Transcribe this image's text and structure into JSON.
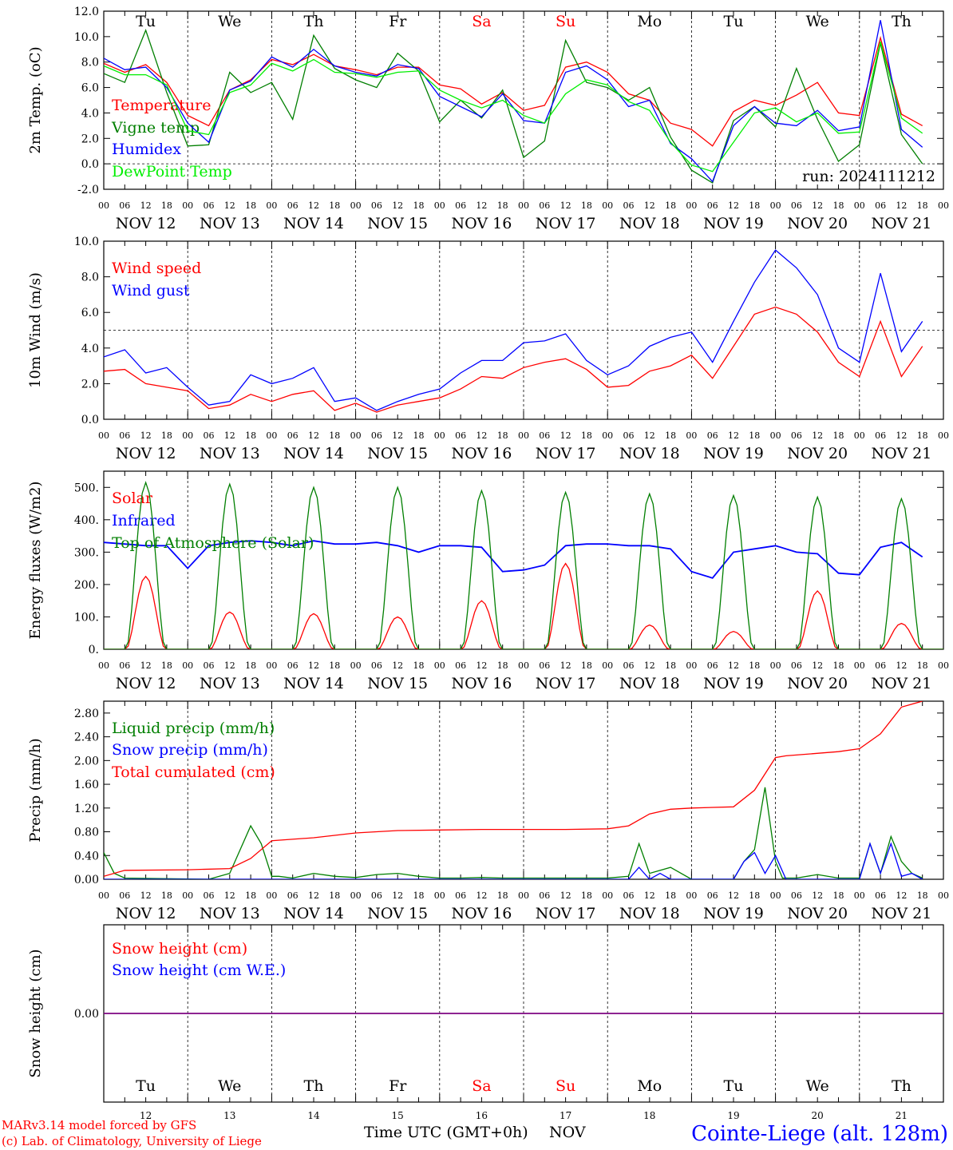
{
  "colors": {
    "red": "#ff0000",
    "green": "#007f00",
    "blue": "#0000ff",
    "lightgreen": "#00ee00",
    "purple": "#7f007f",
    "axis": "#000000"
  },
  "days": [
    "Tu",
    "We",
    "Th",
    "Fr",
    "Sa",
    "Su",
    "Mo",
    "Tu",
    "We",
    "Th"
  ],
  "weekend_days": [
    4,
    5
  ],
  "dates": [
    "NOV 12",
    "NOV 13",
    "NOV 14",
    "NOV 15",
    "NOV 16",
    "NOV 17",
    "NOV 18",
    "NOV 19",
    "NOV 20",
    "NOV 21"
  ],
  "day_numbers": [
    "12",
    "13",
    "14",
    "15",
    "16",
    "17",
    "18",
    "19",
    "20",
    "21"
  ],
  "hour_labels": [
    "00",
    "06",
    "12",
    "18"
  ],
  "footer": {
    "credit_line1": "MARv3.14 model forced by GFS",
    "credit_line2": "(c) Lab. of Climatology, University of Liege",
    "time_label": "Time UTC (GMT+0h)",
    "month_label": "NOV",
    "location": "Cointe-Liege (alt. 128m)"
  },
  "chart_data": [
    {
      "type": "line",
      "ylabel": "2m Temp. (oC)",
      "ylim": [
        -2,
        12
      ],
      "yticks": [
        "-2.0",
        "0.0",
        "2.0",
        "4.0",
        "6.0",
        "8.0",
        "10.0",
        "12.0"
      ],
      "ytick_values": [
        -2,
        0,
        2,
        4,
        6,
        8,
        10,
        12
      ],
      "ref_line": 0,
      "annotation": "run: 2024111212",
      "x_unit": "hours since NOV 12 00 UTC",
      "series": [
        {
          "name": "Temperature",
          "color": "#ff0000",
          "x": [
            0,
            6,
            12,
            18,
            24,
            30,
            36,
            42,
            48,
            54,
            60,
            66,
            72,
            78,
            84,
            90,
            96,
            102,
            108,
            114,
            120,
            126,
            132,
            138,
            144,
            150,
            156,
            162,
            168,
            174,
            180,
            186,
            192,
            198,
            204,
            210,
            216,
            222,
            228,
            234
          ],
          "values": [
            7.9,
            7.2,
            7.8,
            6.4,
            3.8,
            3.0,
            5.8,
            6.6,
            8.2,
            7.8,
            8.6,
            7.7,
            7.4,
            7.0,
            7.6,
            7.6,
            6.2,
            5.9,
            4.7,
            5.6,
            4.2,
            4.6,
            7.6,
            8.0,
            7.2,
            5.5,
            5.0,
            3.2,
            2.7,
            1.4,
            4.1,
            5.0,
            4.6,
            5.4,
            6.4,
            4.0,
            3.8,
            9.9,
            3.9,
            3.0
          ]
        },
        {
          "name": "Vigne temp",
          "color": "#007f00",
          "x": [
            0,
            6,
            12,
            18,
            24,
            30,
            36,
            42,
            48,
            54,
            60,
            66,
            72,
            78,
            84,
            90,
            96,
            102,
            108,
            114,
            120,
            126,
            132,
            138,
            144,
            150,
            156,
            162,
            168,
            174,
            180,
            186,
            192,
            198,
            204,
            210,
            216,
            222,
            228,
            234
          ],
          "values": [
            7.1,
            6.4,
            10.5,
            5.6,
            1.4,
            1.5,
            7.2,
            5.6,
            6.4,
            3.5,
            10.1,
            7.5,
            6.6,
            6.0,
            8.7,
            7.3,
            3.3,
            5.0,
            3.6,
            5.8,
            0.5,
            1.8,
            9.7,
            6.4,
            6.0,
            5.0,
            6.0,
            2.1,
            -0.5,
            -1.5,
            3.4,
            4.5,
            2.9,
            7.5,
            3.5,
            0.2,
            1.5,
            9.5,
            2.3,
            0.0
          ]
        },
        {
          "name": "Humidex",
          "color": "#0000ff",
          "x": [
            0,
            6,
            12,
            18,
            24,
            30,
            36,
            42,
            48,
            54,
            60,
            66,
            72,
            78,
            84,
            90,
            96,
            102,
            108,
            114,
            120,
            126,
            132,
            138,
            144,
            150,
            156,
            162,
            168,
            174,
            180,
            186,
            192,
            198,
            204,
            210,
            216,
            222,
            228,
            234
          ],
          "values": [
            8.3,
            7.4,
            7.6,
            6.0,
            3.2,
            1.7,
            5.8,
            6.5,
            8.4,
            7.6,
            9.0,
            7.7,
            7.2,
            6.9,
            7.8,
            7.5,
            5.3,
            4.5,
            3.7,
            5.5,
            3.4,
            3.2,
            7.2,
            7.7,
            6.6,
            4.5,
            5.0,
            1.6,
            0.4,
            -1.4,
            3.0,
            4.5,
            3.2,
            3.0,
            4.2,
            2.6,
            2.9,
            11.3,
            2.7,
            1.3
          ]
        },
        {
          "name": "DewPoint Temp",
          "color": "#00ee00",
          "x": [
            0,
            6,
            12,
            18,
            24,
            30,
            36,
            42,
            48,
            54,
            60,
            66,
            72,
            78,
            84,
            90,
            96,
            102,
            108,
            114,
            120,
            126,
            132,
            138,
            144,
            150,
            156,
            162,
            168,
            174,
            180,
            186,
            192,
            198,
            204,
            210,
            216,
            222,
            228,
            234
          ],
          "values": [
            7.7,
            7.0,
            7.0,
            6.2,
            2.6,
            2.3,
            5.6,
            6.2,
            7.9,
            7.3,
            8.2,
            7.2,
            7.1,
            6.8,
            7.2,
            7.3,
            5.8,
            5.0,
            4.4,
            5.0,
            3.8,
            3.2,
            5.5,
            6.6,
            6.2,
            4.9,
            4.2,
            1.7,
            -0.1,
            -0.6,
            1.7,
            4.0,
            4.4,
            3.3,
            4.0,
            2.4,
            2.5,
            9.6,
            3.6,
            2.4
          ]
        }
      ]
    },
    {
      "type": "line",
      "ylabel": "10m Wind (m/s)",
      "ylim": [
        0,
        10
      ],
      "yticks": [
        "0.0",
        "2.0",
        "4.0",
        "6.0",
        "8.0",
        "10.0"
      ],
      "ytick_values": [
        0,
        2,
        4,
        6,
        8,
        10
      ],
      "ref_line": 5,
      "series": [
        {
          "name": "Wind speed",
          "color": "#ff0000",
          "x": [
            0,
            6,
            12,
            18,
            24,
            30,
            36,
            42,
            48,
            54,
            60,
            66,
            72,
            78,
            84,
            90,
            96,
            102,
            108,
            114,
            120,
            126,
            132,
            138,
            144,
            150,
            156,
            162,
            168,
            174,
            180,
            186,
            192,
            198,
            204,
            210,
            216,
            222,
            228,
            234
          ],
          "values": [
            2.7,
            2.8,
            2.0,
            1.8,
            1.6,
            0.6,
            0.8,
            1.4,
            1.0,
            1.4,
            1.6,
            0.5,
            0.9,
            0.4,
            0.8,
            1.0,
            1.2,
            1.7,
            2.4,
            2.3,
            2.9,
            3.2,
            3.4,
            2.8,
            1.8,
            1.9,
            2.7,
            3.0,
            3.6,
            2.3,
            4.1,
            5.9,
            6.3,
            5.9,
            4.9,
            3.2,
            2.4,
            5.5,
            2.4,
            4.1
          ]
        },
        {
          "name": "Wind gust",
          "color": "#0000ff",
          "x": [
            0,
            6,
            12,
            18,
            24,
            30,
            36,
            42,
            48,
            54,
            60,
            66,
            72,
            78,
            84,
            90,
            96,
            102,
            108,
            114,
            120,
            126,
            132,
            138,
            144,
            150,
            156,
            162,
            168,
            174,
            180,
            186,
            192,
            198,
            204,
            210,
            216,
            222,
            228,
            234
          ],
          "values": [
            3.5,
            3.9,
            2.6,
            2.9,
            1.8,
            0.8,
            1.0,
            2.5,
            2.0,
            2.3,
            2.9,
            1.0,
            1.2,
            0.5,
            1.0,
            1.4,
            1.7,
            2.6,
            3.3,
            3.3,
            4.3,
            4.4,
            4.8,
            3.3,
            2.5,
            3.0,
            4.1,
            4.6,
            4.9,
            3.2,
            5.5,
            7.7,
            9.5,
            8.5,
            7.0,
            4.0,
            3.2,
            8.2,
            3.8,
            5.5
          ]
        }
      ]
    },
    {
      "type": "line",
      "ylabel": "Energy fluxes (W/m2)",
      "ylim": [
        0,
        550
      ],
      "yticks": [
        "0.",
        "100.",
        "200.",
        "300.",
        "400.",
        "500."
      ],
      "ytick_values": [
        0,
        100,
        200,
        300,
        400,
        500
      ],
      "series": [
        {
          "name": "Solar",
          "color": "#ff0000",
          "daily_peaks": [
            225,
            115,
            110,
            100,
            150,
            265,
            75,
            55,
            180,
            80
          ]
        },
        {
          "name": "Infrared",
          "color": "#0000ff",
          "x": [
            0,
            6,
            12,
            18,
            24,
            30,
            36,
            42,
            48,
            54,
            60,
            66,
            72,
            78,
            84,
            90,
            96,
            102,
            108,
            114,
            120,
            126,
            132,
            138,
            144,
            150,
            156,
            162,
            168,
            174,
            180,
            186,
            192,
            198,
            204,
            210,
            216,
            222,
            228,
            234
          ],
          "values": [
            330,
            325,
            320,
            320,
            250,
            320,
            330,
            335,
            330,
            320,
            335,
            325,
            325,
            330,
            320,
            300,
            320,
            320,
            315,
            240,
            245,
            260,
            320,
            325,
            325,
            320,
            320,
            310,
            240,
            220,
            300,
            310,
            320,
            300,
            295,
            235,
            230,
            315,
            330,
            285
          ]
        },
        {
          "name": "Top of Atmosphere (Solar)",
          "color": "#007f00",
          "daily_peaks": [
            515,
            510,
            500,
            500,
            490,
            485,
            480,
            475,
            470,
            465
          ]
        }
      ]
    },
    {
      "type": "line",
      "ylabel": "Precip (mm/h)",
      "ylim": [
        0,
        3.0
      ],
      "yticks": [
        "0.00",
        "0.40",
        "0.80",
        "1.20",
        "1.60",
        "2.00",
        "2.40",
        "2.80"
      ],
      "ytick_values": [
        0,
        0.4,
        0.8,
        1.2,
        1.6,
        2.0,
        2.4,
        2.8
      ],
      "series": [
        {
          "name": "Liquid precip (mm/h)",
          "color": "#007f00",
          "x": [
            0,
            3,
            6,
            30,
            36,
            42,
            45,
            48,
            50,
            54,
            60,
            66,
            72,
            78,
            84,
            90,
            96,
            102,
            108,
            114,
            120,
            126,
            132,
            138,
            144,
            150,
            153,
            156,
            162,
            168,
            174,
            180,
            183,
            186,
            189,
            192,
            194,
            198,
            204,
            210,
            216,
            219,
            222,
            225,
            228,
            231,
            234
          ],
          "values": [
            0.45,
            0.1,
            0.02,
            0.0,
            0.1,
            0.9,
            0.6,
            0.05,
            0.05,
            0.02,
            0.1,
            0.05,
            0.03,
            0.08,
            0.1,
            0.05,
            0.02,
            0.02,
            0.03,
            0.02,
            0.02,
            0.02,
            0.02,
            0.02,
            0.02,
            0.05,
            0.6,
            0.1,
            0.2,
            0.0,
            0.0,
            0.0,
            0.3,
            0.5,
            1.55,
            0.3,
            0.02,
            0.02,
            0.08,
            0.02,
            0.02,
            0.6,
            0.1,
            0.72,
            0.3,
            0.1,
            0.02
          ]
        },
        {
          "name": "Snow precip (mm/h)",
          "color": "#0000ff",
          "x": [
            0,
            150,
            153,
            156,
            159,
            162,
            174,
            180,
            183,
            186,
            189,
            192,
            195,
            198,
            210,
            216,
            219,
            222,
            225,
            228,
            231,
            234
          ],
          "values": [
            0.0,
            0.0,
            0.2,
            0.0,
            0.1,
            0.0,
            0.0,
            0.0,
            0.3,
            0.45,
            0.1,
            0.4,
            0.0,
            0.0,
            0.0,
            0.0,
            0.6,
            0.1,
            0.6,
            0.05,
            0.1,
            0.0
          ]
        },
        {
          "name": "Total cumulated (cm)",
          "color": "#ff0000",
          "x": [
            0,
            6,
            24,
            36,
            42,
            48,
            60,
            72,
            84,
            96,
            108,
            120,
            132,
            144,
            150,
            156,
            162,
            168,
            180,
            186,
            192,
            195,
            210,
            216,
            222,
            228,
            234
          ],
          "values": [
            0.05,
            0.15,
            0.16,
            0.18,
            0.35,
            0.65,
            0.7,
            0.78,
            0.82,
            0.83,
            0.84,
            0.84,
            0.84,
            0.85,
            0.9,
            1.1,
            1.18,
            1.2,
            1.22,
            1.5,
            2.05,
            2.08,
            2.15,
            2.2,
            2.45,
            2.9,
            3.0
          ]
        }
      ]
    },
    {
      "type": "line",
      "ylabel": "Snow height (cm)",
      "ylim": [
        -1,
        1
      ],
      "yticks": [
        "0.00"
      ],
      "ytick_values": [
        0
      ],
      "series": [
        {
          "name": "Snow height (cm)",
          "color": "#ff0000",
          "x": [
            0,
            240
          ],
          "values": [
            0,
            0
          ]
        },
        {
          "name": "Snow height (cm W.E.)",
          "color": "#0000ff",
          "x": [
            0,
            240
          ],
          "values": [
            0,
            0
          ]
        }
      ]
    }
  ]
}
